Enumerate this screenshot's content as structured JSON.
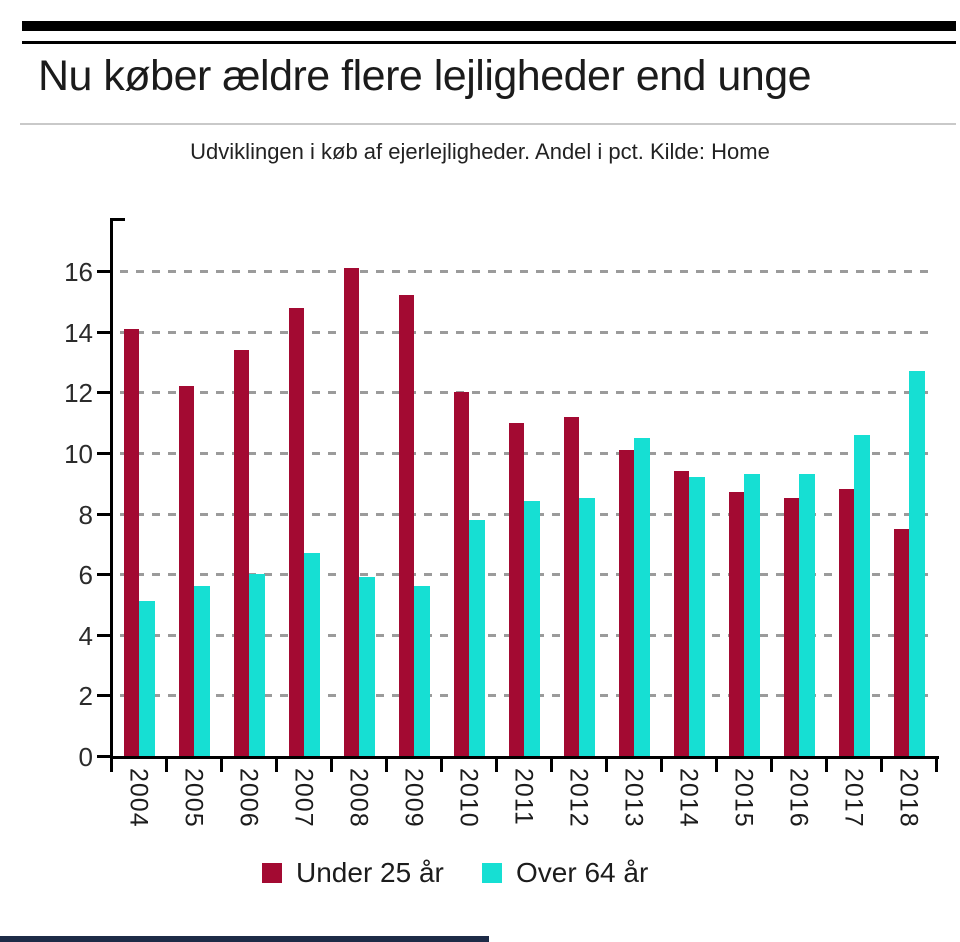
{
  "header": {
    "title": "Nu køber ældre flere lejligheder end unge",
    "subtitle": "Udviklingen i køb af ejerlejligheder. Andel i pct. Kilde: Home"
  },
  "chart_data": {
    "type": "bar",
    "categories": [
      "2004",
      "2005",
      "2006",
      "2007",
      "2008",
      "2009",
      "2010",
      "2011",
      "2012",
      "2013",
      "2014",
      "2015",
      "2016",
      "2017",
      "2018"
    ],
    "series": [
      {
        "name": "Under 25 år",
        "color": "#a30a32",
        "values": [
          14.1,
          12.2,
          13.4,
          14.8,
          16.1,
          15.2,
          12.0,
          11.0,
          11.2,
          10.1,
          9.4,
          8.7,
          8.5,
          8.8,
          7.5
        ]
      },
      {
        "name": "Over 64 år",
        "color": "#16dfd3",
        "values": [
          5.1,
          5.6,
          6.0,
          6.7,
          5.9,
          5.6,
          7.8,
          8.4,
          8.5,
          10.5,
          9.2,
          9.3,
          9.3,
          10.6,
          12.7
        ]
      }
    ],
    "title": "Nu køber ældre flere lejligheder end unge",
    "subtitle": "Udviklingen i køb af ejerlejligheder. Andel i pct. Kilde: Home",
    "xlabel": "",
    "ylabel": "",
    "ylim": [
      0,
      16
    ],
    "ytick_step": 2,
    "yticks": [
      0,
      2,
      4,
      6,
      8,
      10,
      12,
      14,
      16
    ],
    "grid": "horizontal-dashed",
    "legend_position": "bottom"
  },
  "colors": {
    "under25": "#a30a32",
    "over64": "#16dfd3",
    "axis": "#000000",
    "gridline": "#9b9b9b",
    "divider": "#c9c9c9",
    "bottom_strip": "#1d2b47"
  }
}
